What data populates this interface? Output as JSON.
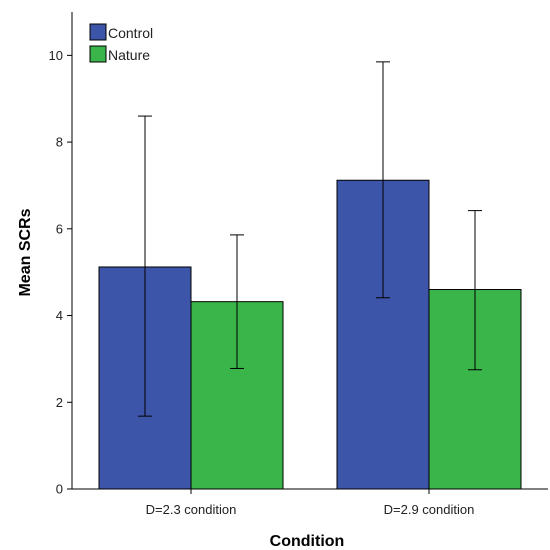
{
  "chart_data": {
    "type": "bar",
    "title": "",
    "xlabel": "Condition",
    "ylabel": "Mean SCRs",
    "categories": [
      "D=2.3 condition",
      "D=2.9 condition"
    ],
    "series": [
      {
        "name": "Control",
        "color": "#3d55a8",
        "values": [
          5.12,
          7.12
        ],
        "error_low": [
          1.68,
          4.41
        ],
        "error_high": [
          8.6,
          9.85
        ]
      },
      {
        "name": "Nature",
        "color": "#39b54a",
        "values": [
          4.32,
          4.6
        ],
        "error_low": [
          2.78,
          2.75
        ],
        "error_high": [
          5.86,
          6.42
        ]
      }
    ],
    "ylim": [
      0,
      11
    ],
    "yticks": [
      0,
      2,
      4,
      6,
      8,
      10
    ],
    "grid": false,
    "legend_position": "top-left",
    "error_bars": true
  }
}
